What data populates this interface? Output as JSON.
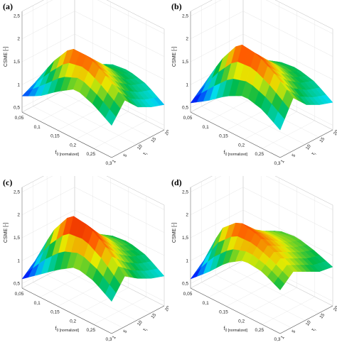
{
  "chart_data": [
    {
      "type": "surface",
      "panel": "(a)",
      "zlabel": "CSME [-]",
      "xlabel_main": "f",
      "xlabel_sub": "0",
      "xlabel_unit": "[normalized]",
      "ylabel_main": "τ",
      "ylabel_sub": "i",
      "x_ticks": [
        "0,05",
        "0,1",
        "0,15",
        "0,2",
        "0,25",
        "0,3"
      ],
      "y_ticks": [
        "1",
        "5",
        "10",
        "15",
        "20"
      ],
      "z_ticks": [
        "0,5",
        "1",
        "1,5",
        "2",
        "2,5"
      ],
      "zlim": [
        0.4,
        2.6
      ],
      "x": [
        0.05,
        0.1,
        0.15,
        0.2,
        0.25,
        0.3
      ],
      "tau": [
        1,
        5,
        10,
        15,
        20
      ],
      "z": [
        [
          0.75,
          0.95,
          1.25,
          1.5,
          1.35,
          1.1
        ],
        [
          0.9,
          1.55,
          2.05,
          2.05,
          1.8,
          1.5
        ],
        [
          0.8,
          1.35,
          1.7,
          1.75,
          1.5,
          1.2
        ],
        [
          0.7,
          1.1,
          1.4,
          1.45,
          1.3,
          1.05
        ],
        [
          0.6,
          1.0,
          1.25,
          1.3,
          1.2,
          0.95
        ]
      ]
    },
    {
      "type": "surface",
      "panel": "(b)",
      "zlabel": "CSME [-]",
      "xlabel_main": "f",
      "xlabel_sub": "0",
      "xlabel_unit": "[normalized]",
      "ylabel_main": "τ",
      "ylabel_sub": "i",
      "x_ticks": [
        "0,05",
        "0,1",
        "0,15",
        "0,2",
        "0,25",
        "0,3"
      ],
      "y_ticks": [
        "1",
        "5",
        "10",
        "15",
        "20"
      ],
      "z_ticks": [
        "0,5",
        "1",
        "1,5",
        "2",
        "2,5"
      ],
      "zlim": [
        0.4,
        2.6
      ],
      "x": [
        0.05,
        0.1,
        0.15,
        0.2,
        0.25,
        0.3
      ],
      "tau": [
        1,
        5,
        10,
        15,
        20
      ],
      "z": [
        [
          0.6,
          0.85,
          1.15,
          1.35,
          1.25,
          1.0
        ],
        [
          0.85,
          1.6,
          2.15,
          2.1,
          1.85,
          1.55
        ],
        [
          0.75,
          1.4,
          1.75,
          1.8,
          1.55,
          1.25
        ],
        [
          0.7,
          1.2,
          1.5,
          1.5,
          1.35,
          1.1
        ],
        [
          0.6,
          1.05,
          1.3,
          1.35,
          1.25,
          1.0
        ]
      ]
    },
    {
      "type": "surface",
      "panel": "(c)",
      "zlabel": "CSME [-]",
      "xlabel_main": "f",
      "xlabel_sub": "0",
      "xlabel_unit": "[normalized]",
      "ylabel_main": "τ",
      "ylabel_sub": "i",
      "x_ticks": [
        "0,05",
        "0,1",
        "0,15",
        "0,2",
        "0,25",
        "0,3"
      ],
      "y_ticks": [
        "1",
        "5",
        "10",
        "15",
        "20"
      ],
      "z_ticks": [
        "0,5",
        "1",
        "1,5",
        "2",
        "2,5"
      ],
      "zlim": [
        0.4,
        2.6
      ],
      "x": [
        0.05,
        0.1,
        0.15,
        0.2,
        0.25,
        0.3
      ],
      "tau": [
        1,
        5,
        10,
        15,
        20
      ],
      "z": [
        [
          0.6,
          0.9,
          1.2,
          1.45,
          1.35,
          1.1
        ],
        [
          0.85,
          1.7,
          2.25,
          2.2,
          1.9,
          1.5
        ],
        [
          0.75,
          1.45,
          1.8,
          1.85,
          1.6,
          1.3
        ],
        [
          0.7,
          1.25,
          1.55,
          1.55,
          1.4,
          1.15
        ],
        [
          0.65,
          1.1,
          1.35,
          1.4,
          1.3,
          1.05
        ]
      ]
    },
    {
      "type": "surface",
      "panel": "(d)",
      "zlabel": "CSME [-]",
      "xlabel_main": "f",
      "xlabel_sub": "0",
      "xlabel_unit": "[normalized]",
      "ylabel_main": "τ",
      "ylabel_sub": "i",
      "x_ticks": [
        "0,05",
        "0,1",
        "0,15",
        "0,2",
        "0,25",
        "0,3"
      ],
      "y_ticks": [
        "1",
        "5",
        "10",
        "15",
        "20"
      ],
      "z_ticks": [
        "0,5",
        "1",
        "1,5",
        "2",
        "2,5"
      ],
      "zlim": [
        0.4,
        2.6
      ],
      "x": [
        0.05,
        0.1,
        0.15,
        0.2,
        0.25,
        0.3
      ],
      "tau": [
        1,
        5,
        10,
        15,
        20
      ],
      "z": [
        [
          0.6,
          0.95,
          1.35,
          1.6,
          1.55,
          1.35
        ],
        [
          0.85,
          1.75,
          2.1,
          2.0,
          1.8,
          1.6
        ],
        [
          0.8,
          1.5,
          1.8,
          1.8,
          1.65,
          1.45
        ],
        [
          0.75,
          1.35,
          1.6,
          1.6,
          1.5,
          1.3
        ],
        [
          0.7,
          1.2,
          1.45,
          1.5,
          1.4,
          1.25
        ]
      ]
    }
  ]
}
